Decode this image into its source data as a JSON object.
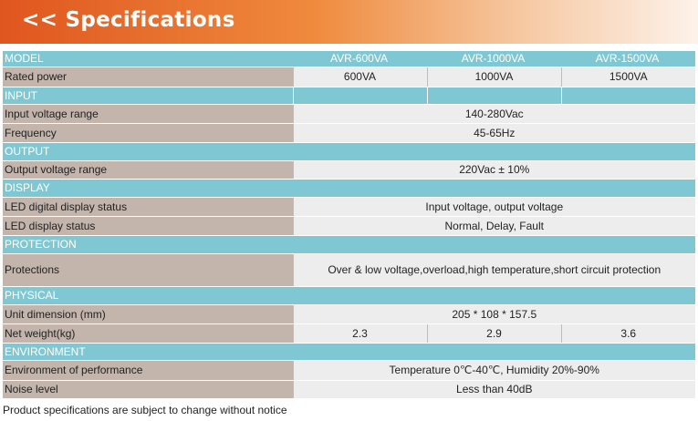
{
  "header": {
    "title": "<< Specifications"
  },
  "table": {
    "model_label": "MODEL",
    "models": [
      "AVR-600VA",
      "AVR-1000VA",
      "AVR-1500VA"
    ],
    "rated_power": {
      "label": "Rated power",
      "values": [
        "600VA",
        "1000VA",
        "1500VA"
      ]
    },
    "input": {
      "header": "INPUT",
      "voltage_range": {
        "label": "Input voltage range",
        "value": "140-280Vac"
      },
      "frequency": {
        "label": "Frequency",
        "value": "45-65Hz"
      }
    },
    "output": {
      "header": "OUTPUT",
      "voltage_range": {
        "label": "Output voltage range",
        "value": "220Vac ± 10%"
      }
    },
    "display": {
      "header": "DISPLAY",
      "digital_status": {
        "label": "LED digital display status",
        "value": "Input voltage, output voltage"
      },
      "led_status": {
        "label": "LED display status",
        "value": "Normal, Delay, Fault"
      }
    },
    "protection": {
      "header": "PROTECTION",
      "protections": {
        "label": "Protections",
        "value": "Over & low voltage,overload,high temperature,short circuit protection"
      }
    },
    "physical": {
      "header": "PHYSICAL",
      "dimension": {
        "label": "Unit dimension (mm)",
        "value": "205 * 108 * 157.5"
      },
      "weight": {
        "label": "Net weight(kg)",
        "values": [
          "2.3",
          "2.9",
          "3.6"
        ]
      }
    },
    "environment": {
      "header": "ENVIRONMENT",
      "performance": {
        "label": "Environment of performance",
        "value": "Temperature 0℃-40℃, Humidity 20%-90%"
      },
      "noise": {
        "label": "Noise level",
        "value": "Less than 40dB"
      }
    }
  },
  "footnote": "Product specifications are subject to change without notice"
}
